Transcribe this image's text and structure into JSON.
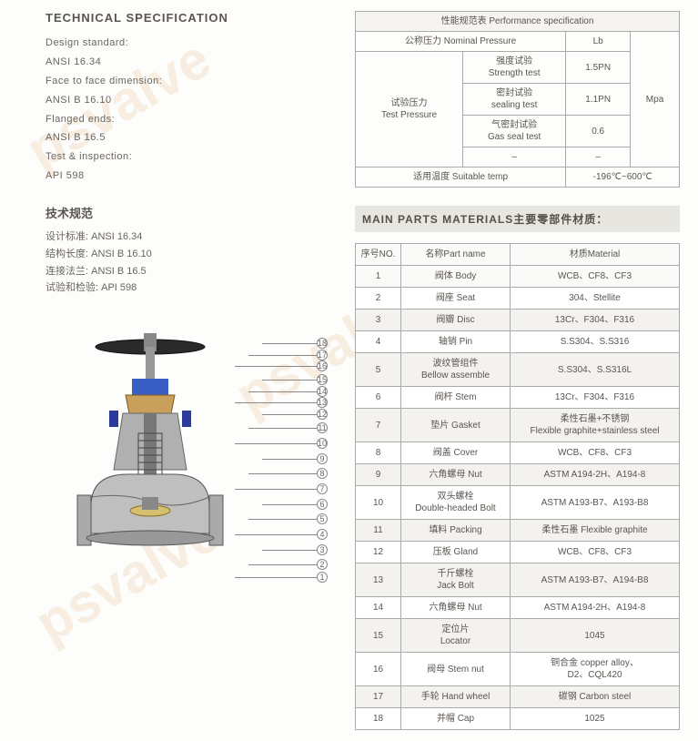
{
  "watermarks": [
    "psvalve",
    "psvalve",
    "psvalve"
  ],
  "tech_spec": {
    "title_en": "TECHNICAL SPECIFICATION",
    "lines_en": [
      "Design standard:",
      "ANSI 16.34",
      "Face to face dimension:",
      "ANSI B 16.10",
      "Flanged ends:",
      "ANSI B 16.5",
      "Test & inspection:",
      "API 598"
    ],
    "title_cn": "技术规范",
    "lines_cn": [
      "设计标准: ANSI 16.34",
      "结构长度: ANSI B 16.10",
      "连接法兰: ANSI B 16.5",
      "试验和检验: API 598"
    ]
  },
  "perf_table": {
    "title": "性能规范表 Performance specification",
    "col_nominal": "公称压力 Nominal Pressure",
    "col_lb": "Lb",
    "row_group": "试验压力\nTest Pressure",
    "rows": [
      {
        "name": "强度试验\nStrength test",
        "val": "1.5PN"
      },
      {
        "name": "密封试验\nsealing test",
        "val": "1.1PN"
      },
      {
        "name": "气密封试验\nGas seal test",
        "val": "0.6"
      },
      {
        "name": "–",
        "val": "–"
      }
    ],
    "unit": "Mpa",
    "temp_label": "适用温度 Suitable temp",
    "temp_val": "-196℃~600℃"
  },
  "parts": {
    "title": "MAIN PARTS MATERIALS主要零部件材质：",
    "header": {
      "no": "序号NO.",
      "name": "名称Part name",
      "mat": "材质Material"
    },
    "rows": [
      {
        "no": "1",
        "name": "阀体 Body",
        "mat": "WCB、CF8、CF3"
      },
      {
        "no": "2",
        "name": "阀座 Seat",
        "mat": "304、Stellite"
      },
      {
        "no": "3",
        "name": "阀瓣 Disc",
        "mat": "13Cr、F304、F316"
      },
      {
        "no": "4",
        "name": "轴销 Pin",
        "mat": "S.S304、S.S316"
      },
      {
        "no": "5",
        "name": "波纹管组件\nBellow assemble",
        "mat": "S.S304、S.S316L"
      },
      {
        "no": "6",
        "name": "阀杆 Stem",
        "mat": "13Cr、F304、F316"
      },
      {
        "no": "7",
        "name": "垫片 Gasket",
        "mat": "柔性石墨+不锈钢\nFlexible graphite+stainless steel"
      },
      {
        "no": "8",
        "name": "阀盖 Cover",
        "mat": "WCB、CF8、CF3"
      },
      {
        "no": "9",
        "name": "六角螺母 Nut",
        "mat": "ASTM A194-2H、A194-8"
      },
      {
        "no": "10",
        "name": "双头螺栓\nDouble-headed Bolt",
        "mat": "ASTM A193-B7、A193-B8"
      },
      {
        "no": "11",
        "name": "填料 Packing",
        "mat": "柔性石墨 Flexible graphite"
      },
      {
        "no": "12",
        "name": "压板 Gland",
        "mat": "WCB、CF8、CF3"
      },
      {
        "no": "13",
        "name": "千斤螺栓\nJack Bolt",
        "mat": "ASTM A193-B7、A194-B8"
      },
      {
        "no": "14",
        "name": "六角螺母 Nut",
        "mat": "ASTM A194-2H、A194-8"
      },
      {
        "no": "15",
        "name": "定位片\nLocator",
        "mat": "1045"
      },
      {
        "no": "16",
        "name": "阀母 Stem nut",
        "mat": "铜合金 copper alloy、\nD2、CQL420"
      },
      {
        "no": "17",
        "name": "手轮 Hand wheel",
        "mat": "碳钢 Carbon steel"
      },
      {
        "no": "18",
        "name": "并帽 Cap",
        "mat": "1025"
      }
    ]
  },
  "callouts": [
    18,
    17,
    16,
    15,
    14,
    13,
    12,
    11,
    10,
    9,
    8,
    7,
    6,
    5,
    4,
    3,
    2,
    1
  ],
  "colors": {
    "text": "#6b6560",
    "border": "#aaa",
    "strip_bg": "#e8e6e0",
    "alt_row": "#f3f2ee"
  }
}
